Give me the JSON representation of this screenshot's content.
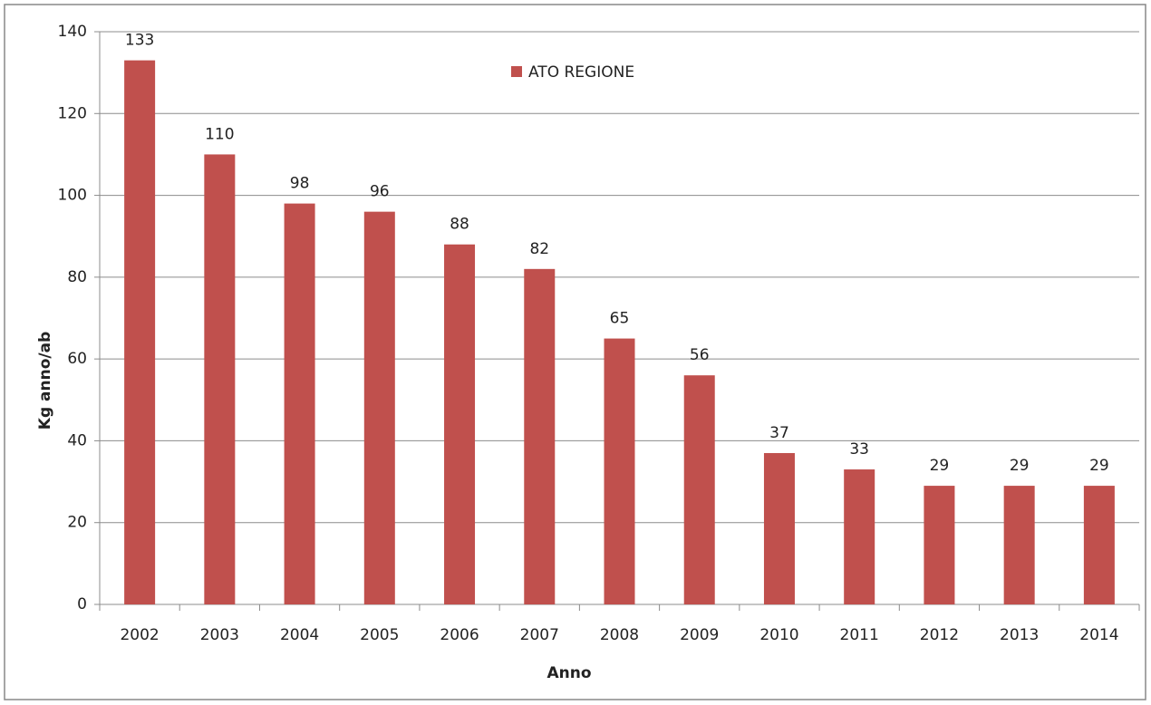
{
  "chart_data": {
    "type": "bar",
    "x_label": "Anno",
    "y_label": "Kg anno/ab",
    "categories": [
      "2002",
      "2003",
      "2004",
      "2005",
      "2006",
      "2007",
      "2008",
      "2009",
      "2010",
      "2011",
      "2012",
      "2013",
      "2014"
    ],
    "series": [
      {
        "name": "ATO REGIONE",
        "color": "#c0504d",
        "values": [
          133,
          110,
          98,
          96,
          88,
          82,
          65,
          56,
          37,
          33,
          29,
          29,
          29
        ]
      }
    ],
    "ylim": [
      0,
      140
    ],
    "yticks": [
      0,
      20,
      40,
      60,
      80,
      100,
      120,
      140
    ],
    "grid": true,
    "data_labels": true,
    "legend": "top"
  }
}
